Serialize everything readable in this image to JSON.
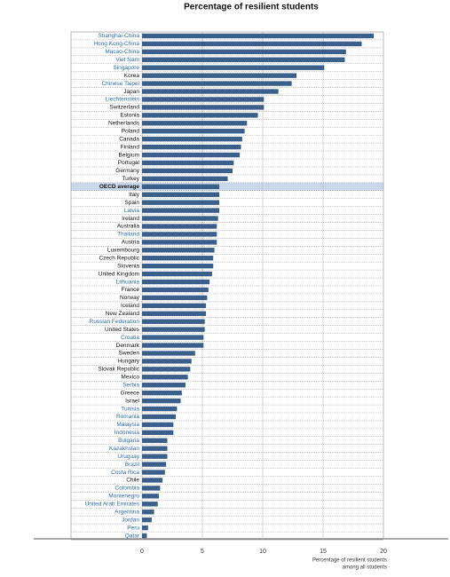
{
  "chart_data": {
    "type": "barh",
    "title": "Percentage of resilient students",
    "xlabel": [
      "Percentage of resilient students",
      "among all students"
    ],
    "categories": [
      "Shanghai-China",
      "Hong Kong-China",
      "Macao-China",
      "Viet Nam",
      "Singapore",
      "Korea",
      "Chinese Taipei",
      "Japan",
      "Liechtenstein",
      "Switzerland",
      "Estonia",
      "Netherlands",
      "Poland",
      "Canada",
      "Finland",
      "Belgium",
      "Portugal",
      "Germany",
      "Turkey",
      "OECD average",
      "Italy",
      "Spain",
      "Latvia",
      "Ireland",
      "Australia",
      "Thailand",
      "Austria",
      "Luxembourg",
      "Czech Republic",
      "Slovenia",
      "United Kingdom",
      "Lithuania",
      "France",
      "Norway",
      "Iceland",
      "New Zealand",
      "Russian Federation",
      "United States",
      "Croatia",
      "Denmark",
      "Sweden",
      "Hungary",
      "Slovak Republic",
      "Mexico",
      "Serbia",
      "Greece",
      "Israel",
      "Tunisia",
      "Romania",
      "Malaysia",
      "Indonesia",
      "Bulgaria",
      "Kazakhstan",
      "Uruguay",
      "Brazil",
      "Costa Rica",
      "Chile",
      "Colombia",
      "Montenegro",
      "United Arab Emirates",
      "Argentina",
      "Jordan",
      "Peru",
      "Qatar"
    ],
    "values": [
      19.2,
      18.2,
      16.9,
      16.8,
      15.1,
      12.8,
      12.4,
      11.3,
      10.1,
      10.1,
      9.6,
      8.7,
      8.5,
      8.3,
      8.2,
      8.1,
      7.6,
      7.5,
      7.1,
      6.4,
      6.4,
      6.4,
      6.4,
      6.3,
      6.2,
      6.2,
      6.2,
      6.0,
      5.9,
      5.9,
      5.8,
      5.6,
      5.5,
      5.4,
      5.3,
      5.3,
      5.2,
      5.2,
      5.1,
      5.1,
      4.4,
      4.1,
      4.0,
      3.8,
      3.6,
      3.3,
      3.2,
      2.9,
      2.8,
      2.6,
      2.6,
      2.1,
      2.1,
      2.1,
      2.0,
      1.9,
      1.7,
      1.5,
      1.4,
      1.3,
      1.0,
      0.8,
      0.5,
      0.4
    ],
    "label_colors": [
      "#2e6aa8",
      "#2e6aa8",
      "#2e6aa8",
      "#2e6aa8",
      "#2e6aa8",
      "#111",
      "#2e6aa8",
      "#111",
      "#2e6aa8",
      "#111",
      "#111",
      "#111",
      "#111",
      "#111",
      "#111",
      "#111",
      "#111",
      "#111",
      "#111",
      "#111",
      "#111",
      "#111",
      "#2e6aa8",
      "#111",
      "#111",
      "#2e6aa8",
      "#111",
      "#111",
      "#111",
      "#111",
      "#111",
      "#2e6aa8",
      "#111",
      "#111",
      "#111",
      "#111",
      "#2e6aa8",
      "#111",
      "#2e6aa8",
      "#111",
      "#111",
      "#111",
      "#111",
      "#111",
      "#2e6aa8",
      "#111",
      "#111",
      "#2e6aa8",
      "#2e6aa8",
      "#2e6aa8",
      "#2e6aa8",
      "#2e6aa8",
      "#2e6aa8",
      "#2e6aa8",
      "#2e6aa8",
      "#2e6aa8",
      "#111",
      "#2e6aa8",
      "#2e6aa8",
      "#2e6aa8",
      "#2e6aa8",
      "#2e6aa8",
      "#2e6aa8",
      "#2e6aa8"
    ],
    "highlight_index": 19,
    "highlight_color": "#c9d7e8",
    "color": "#3a5f8a",
    "xlim": [
      0,
      20
    ],
    "xticks": [
      0,
      5,
      10,
      15,
      20
    ],
    "grid": true
  }
}
